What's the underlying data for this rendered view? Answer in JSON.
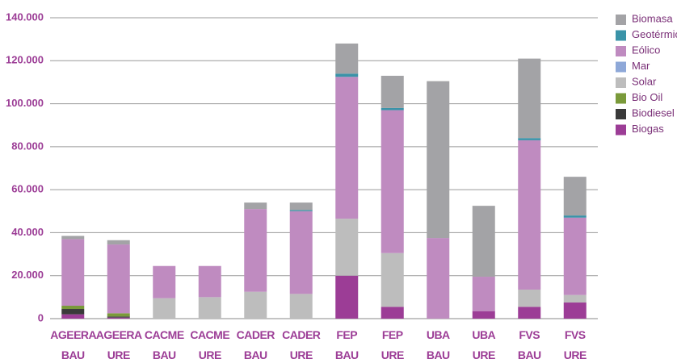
{
  "chart_data": {
    "type": "stacked_bar",
    "categories": [
      "AGEERA BAU",
      "AGEERA URE",
      "CACME BAU",
      "CACME URE",
      "CADER BAU",
      "CADER URE",
      "FEP BAU",
      "FEP URE",
      "UBA BAU",
      "UBA URE",
      "FVS BAU",
      "FVS URE"
    ],
    "series": [
      {
        "name": "Biogas",
        "color": "#9c3d96",
        "values": [
          2000,
          500,
          0,
          0,
          0,
          0,
          20000,
          5500,
          0,
          3500,
          5500,
          7500
        ]
      },
      {
        "name": "Biodiesel",
        "color": "#3a3a3a",
        "values": [
          2500,
          500,
          0,
          0,
          0,
          0,
          0,
          0,
          0,
          0,
          0,
          0
        ]
      },
      {
        "name": "Bio Oil",
        "color": "#7a9a3a",
        "values": [
          1500,
          1500,
          0,
          0,
          0,
          0,
          0,
          0,
          0,
          0,
          0,
          0
        ]
      },
      {
        "name": "Solar",
        "color": "#bdbdbd",
        "values": [
          0,
          0,
          9500,
          10000,
          12500,
          11500,
          26500,
          25000,
          0,
          0,
          8000,
          3500
        ]
      },
      {
        "name": "Mar",
        "color": "#8ea8d8",
        "values": [
          0,
          0,
          0,
          0,
          0,
          0,
          0,
          0,
          0,
          0,
          0,
          0
        ]
      },
      {
        "name": "Eólico",
        "color": "#bf8bc0",
        "values": [
          31000,
          32000,
          15000,
          14500,
          38500,
          38500,
          66000,
          66500,
          37500,
          16000,
          69500,
          36000
        ]
      },
      {
        "name": "Geotérmico",
        "color": "#3a93a8",
        "values": [
          0,
          0,
          0,
          0,
          0,
          500,
          1500,
          1000,
          0,
          0,
          1000,
          1000
        ]
      },
      {
        "name": "Biomasa",
        "color": "#a3a3a6",
        "values": [
          1500,
          2000,
          0,
          0,
          3000,
          3500,
          14000,
          15000,
          73000,
          33000,
          37000,
          18000
        ]
      }
    ],
    "ylim": [
      0,
      140000
    ],
    "yticks": [
      0,
      {
        "value": 20000,
        "label": "20.000"
      },
      {
        "value": 40000,
        "label": "40.000"
      },
      {
        "value": 60000,
        "label": "60.000"
      },
      {
        "value": 80000,
        "label": "80.000"
      },
      {
        "value": 100000,
        "label": "100.000"
      },
      {
        "value": 120000,
        "label": "120.000"
      },
      {
        "value": 140000,
        "label": "140.000"
      }
    ],
    "grid": true,
    "legend": "right"
  }
}
